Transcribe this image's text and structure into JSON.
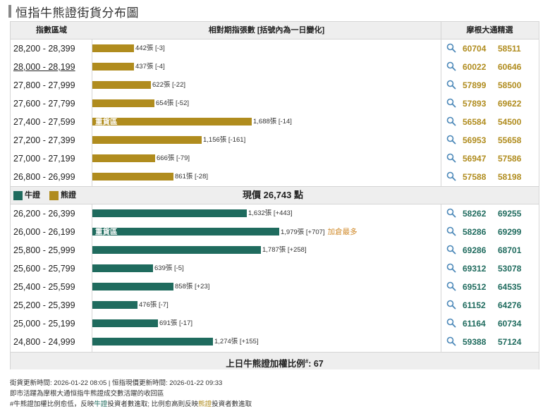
{
  "page_title": "恒指牛熊證街貨分布圖",
  "header": {
    "col_range": "指數區域",
    "col_bars": "相對期指張數 [括號內為一日變化]",
    "col_picks": "摩根大通精選"
  },
  "legend": {
    "bull": "牛證",
    "bear": "熊證"
  },
  "current_price_label": "現價 26,743 點",
  "heavy_label": "重貨區",
  "most_added_label": "加倉最多",
  "footer": {
    "ratio_label": "上日牛熊證加權比例",
    "ratio_sup": "#",
    "ratio_sep": ":",
    "ratio_value": "67"
  },
  "notes": {
    "line1": "街貨更新時間: 2026-01-22 08:05  |  恒指現價更新時間: 2026-01-22 09:33",
    "line2": "即市活躍為摩根大通恒指牛熊證成交數活躍的收回區",
    "line3_a": "#牛熊證加權比例愈低，反映",
    "line3_b": "牛證",
    "line3_c": "投資者數進取; 比例愈高則反映",
    "line3_d": "熊證",
    "line3_e": "投資者數進取"
  },
  "colors": {
    "bull": "#1f6b5e",
    "bear": "#b08c1e",
    "most": "#d08a2a"
  },
  "chart_data": {
    "type": "bar",
    "orientation": "horizontal",
    "title": "恒指牛熊證街貨分布圖",
    "xlabel": "相對期指張數 [括號內為一日變化]",
    "x_max": 2000,
    "series": [
      {
        "name": "熊證",
        "categories": [
          "28,200 - 28,399",
          "28,000 - 28,199",
          "27,800 - 27,999",
          "27,600 - 27,799",
          "27,400 - 27,599",
          "27,200 - 27,399",
          "27,000 - 27,199",
          "26,800 - 26,999"
        ],
        "values": [
          442,
          437,
          622,
          654,
          1688,
          1156,
          666,
          861
        ],
        "labels": [
          "442張 [-3]",
          "437張 [-4]",
          "622張 [-22]",
          "654張 [-52]",
          "1,688張 [-14]",
          "1,156張 [-161]",
          "666張 [-79]",
          "861張 [-28]"
        ],
        "changes": [
          -3,
          -4,
          -22,
          -52,
          -14,
          -161,
          -79,
          -28
        ],
        "heavy_index": 4,
        "picks": [
          [
            "60704",
            "58511"
          ],
          [
            "60022",
            "60646"
          ],
          [
            "57899",
            "58500"
          ],
          [
            "57893",
            "69622"
          ],
          [
            "56584",
            "54500"
          ],
          [
            "56953",
            "55658"
          ],
          [
            "56947",
            "57586"
          ],
          [
            "57588",
            "58198"
          ]
        ]
      },
      {
        "name": "牛證",
        "categories": [
          "26,200 - 26,399",
          "26,000 - 26,199",
          "25,800 - 25,999",
          "25,600 - 25,799",
          "25,400 - 25,599",
          "25,200 - 25,399",
          "25,000 - 25,199",
          "24,800 - 24,999"
        ],
        "values": [
          1632,
          1979,
          1787,
          639,
          858,
          476,
          691,
          1274
        ],
        "labels": [
          "1,632張 [+443]",
          "1,979張 [+707]",
          "1,787張 [+258]",
          "639張 [-5]",
          "858張 [+23]",
          "476張 [-7]",
          "691張 [-17]",
          "1,274張 [+155]"
        ],
        "changes": [
          443,
          707,
          258,
          -5,
          23,
          -7,
          -17,
          155
        ],
        "heavy_index": 1,
        "most_added_index": 1,
        "picks": [
          [
            "58262",
            "69255"
          ],
          [
            "58286",
            "69299"
          ],
          [
            "69286",
            "68701"
          ],
          [
            "69312",
            "53078"
          ],
          [
            "69512",
            "64535"
          ],
          [
            "61152",
            "64276"
          ],
          [
            "61164",
            "60734"
          ],
          [
            "59388",
            "57124"
          ]
        ]
      }
    ]
  }
}
